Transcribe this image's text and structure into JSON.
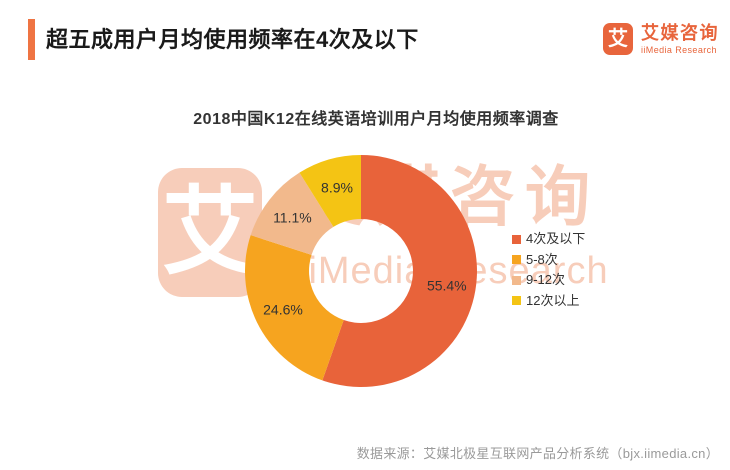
{
  "page": {
    "title": "超五成用户月均使用频率在4次及以下",
    "source_note": "数据来源：艾媒北极星互联网产品分析系统（bjx.iimedia.cn）"
  },
  "theme": {
    "accent_bar_color": "#EF7443",
    "title_color": "#1A1A1A",
    "source_text_color": "#9A9A9A"
  },
  "brand": {
    "logo_glyph": "艾",
    "name_cn": "艾媒咨询",
    "name_en": "iiMedia Research",
    "color": "#E8653C"
  },
  "watermark": {
    "logo_glyph": "艾",
    "text_cn": "艾媒咨询",
    "text_en": "iiMedia Research",
    "color": "#EE8A5C"
  },
  "chart_data": {
    "type": "pie",
    "subtype": "donut",
    "title": "2018中国K12在线英语培训用户月均使用频率调查",
    "start_angle_deg": 0,
    "direction": "clockwise",
    "outer_radius_px": 116,
    "inner_radius_px": 52,
    "label_radius_px": 87,
    "legend_position": "right",
    "slices": [
      {
        "label": "4次及以下",
        "value": 55.4,
        "value_label": "55.4%",
        "color": "#E8633A"
      },
      {
        "label": "5-8次",
        "value": 24.6,
        "value_label": "24.6%",
        "color": "#F6A41F"
      },
      {
        "label": "9-12次",
        "value": 11.1,
        "value_label": "11.1%",
        "color": "#F2B98C"
      },
      {
        "label": "12次以上",
        "value": 8.9,
        "value_label": "8.9%",
        "color": "#F4C414"
      }
    ]
  }
}
